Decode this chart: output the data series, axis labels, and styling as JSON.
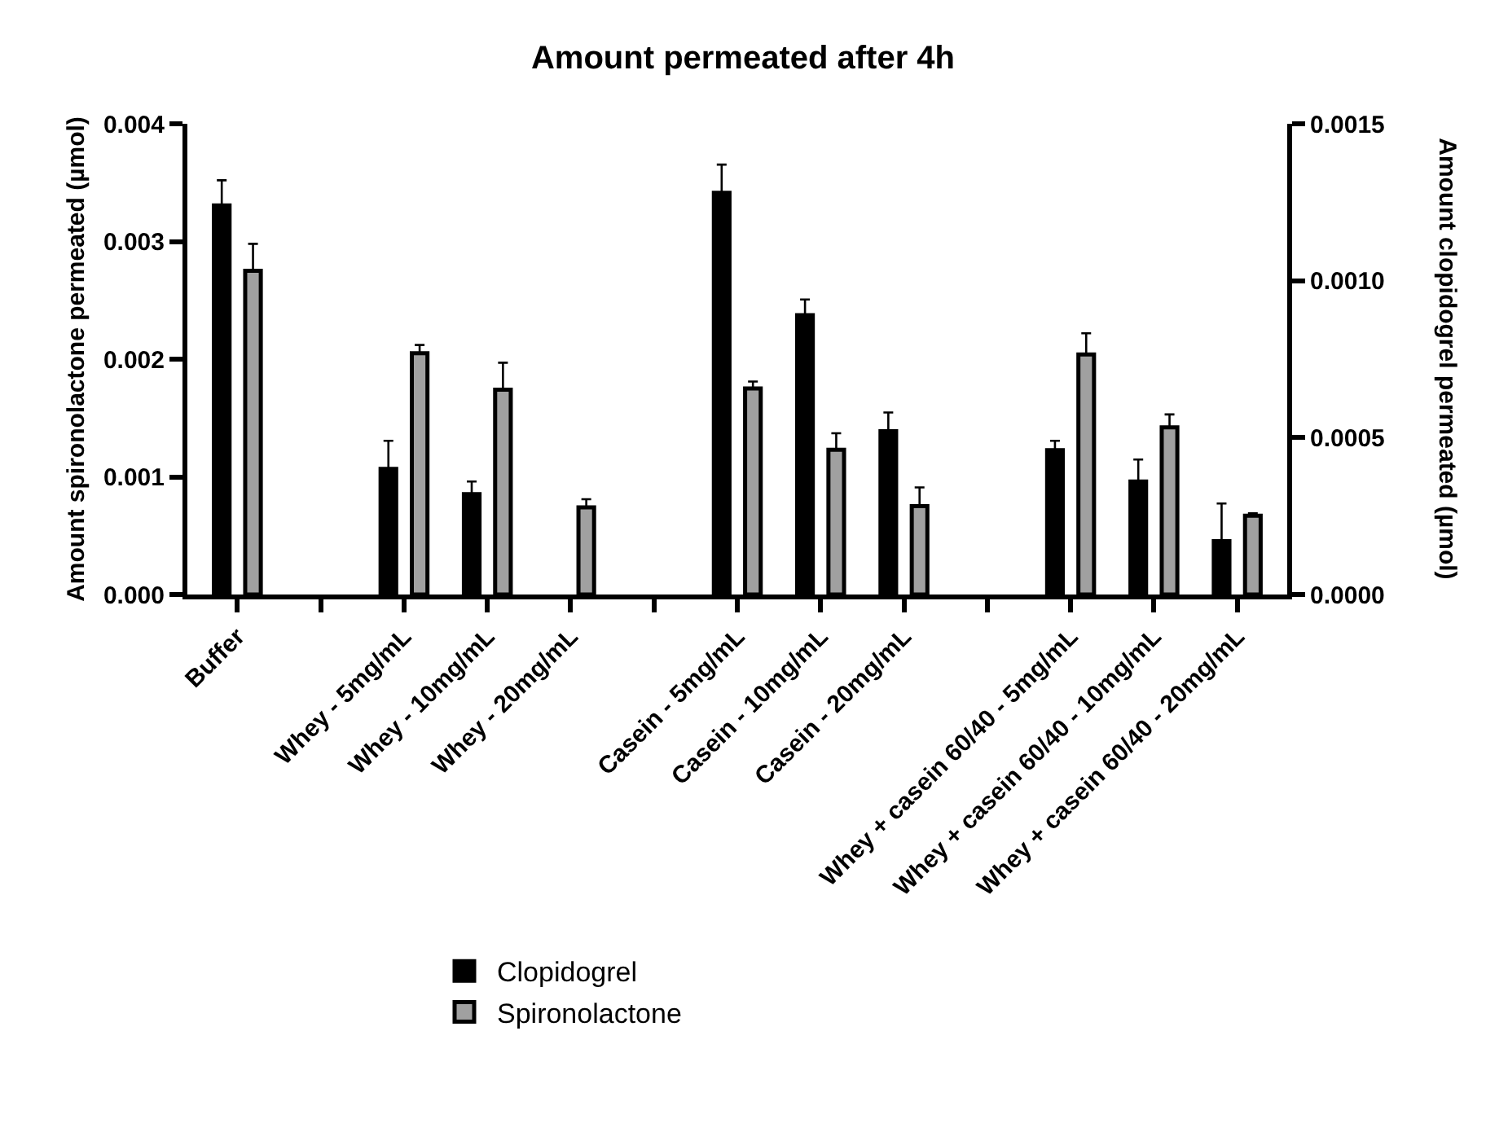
{
  "chart_data": {
    "type": "bar",
    "title": "Amount permeated after 4h",
    "categories": [
      "Buffer",
      null,
      "Whey - 5mg/mL",
      "Whey - 10mg/mL",
      "Whey - 20mg/mL",
      null,
      "Casein - 5mg/mL",
      "Casein - 10mg/mL",
      "Casein - 20mg/mL",
      null,
      "Whey + casein 60/40 - 5mg/mL",
      "Whey + casein 60/40 - 10mg/mL",
      "Whey + casein 60/40 - 20mg/mL"
    ],
    "series": [
      {
        "name": "Clopidogrel",
        "color": "#000000",
        "axis": "y2",
        "values": [
          0.00124,
          null,
          0.0004,
          0.00032,
          null,
          null,
          0.00128,
          0.00089,
          0.00052,
          null,
          0.00046,
          0.00036,
          0.00017
        ],
        "errors": [
          [
            0.00124,
            0.00132
          ],
          null,
          [
            0.0004,
            0.00049
          ],
          [
            0.00032,
            0.00036
          ],
          null,
          null,
          [
            0.00128,
            0.00137
          ],
          [
            0.00089,
            0.00094
          ],
          [
            0.00052,
            0.00058
          ],
          null,
          [
            0.00046,
            0.00049
          ],
          [
            0.00036,
            0.00043
          ],
          [
            0.00017,
            0.00029
          ]
        ]
      },
      {
        "name": "Spironolactone",
        "color": "#a0a0a0",
        "values": [
          0.00275,
          null,
          0.00205,
          0.00174,
          0.00074,
          null,
          0.00175,
          0.00123,
          0.00075,
          null,
          0.00204,
          0.00142,
          0.00067
        ],
        "errors": [
          [
            0.00275,
            0.00298
          ],
          null,
          [
            0.00205,
            0.00212
          ],
          [
            0.00174,
            0.00197
          ],
          [
            0.00074,
            0.00081
          ],
          null,
          [
            0.00175,
            0.00181
          ],
          [
            0.00123,
            0.00137
          ],
          [
            0.00075,
            0.00091
          ],
          null,
          [
            0.00204,
            0.00222
          ],
          [
            0.00142,
            0.00153
          ],
          [
            0.00067,
            0.00069
          ]
        ]
      }
    ],
    "ylabel": "Amount spironolactone permeated (µmol)",
    "y2label": "Amount clopidogrel permeated (µmol)",
    "ylim": [
      0,
      0.004
    ],
    "yticks": [
      {
        "value": 0,
        "label": "0.000"
      },
      {
        "value": 0.001,
        "label": "0.001"
      },
      {
        "value": 0.002,
        "label": "0.002"
      },
      {
        "value": 0.003,
        "label": "0.003"
      },
      {
        "value": 0.004,
        "label": "0.004"
      }
    ],
    "y2lim": [
      0,
      0.0015
    ],
    "y2ticks": [
      {
        "value": 0,
        "label": "0.0000"
      },
      {
        "value": 0.0005,
        "label": "0.0005"
      },
      {
        "value": 0.001,
        "label": "0.0010"
      },
      {
        "value": 0.0015,
        "label": "0.0015"
      }
    ],
    "legend": "bottom"
  }
}
